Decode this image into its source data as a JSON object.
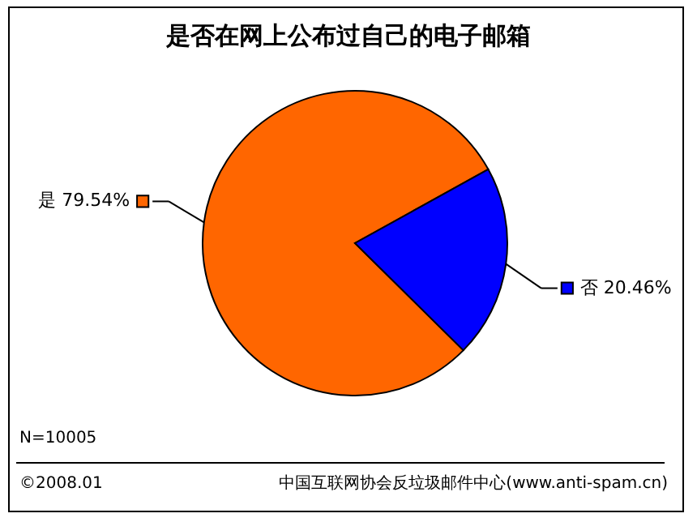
{
  "chart_data": {
    "type": "pie",
    "title": "是否在网上公布过自己的电子邮箱",
    "categories": [
      "是",
      "否"
    ],
    "values": [
      79.54,
      20.46
    ],
    "colors": [
      "#ff6600",
      "#0000ff"
    ],
    "value_labels": [
      "79.54%",
      "20.46%"
    ],
    "annotations": [
      "N=10005",
      "©2008.01",
      "中国互联网协会反垃圾邮件中心(www.anti-spam.cn)"
    ]
  }
}
